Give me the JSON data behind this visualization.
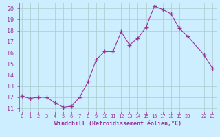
{
  "x": [
    0,
    1,
    2,
    3,
    4,
    5,
    6,
    7,
    8,
    9,
    10,
    11,
    12,
    13,
    14,
    15,
    16,
    17,
    18,
    19,
    20,
    22,
    23
  ],
  "y": [
    12.1,
    11.9,
    12.0,
    12.0,
    11.5,
    11.1,
    11.2,
    12.0,
    13.4,
    15.4,
    16.1,
    16.1,
    17.9,
    16.7,
    17.3,
    18.3,
    20.2,
    19.9,
    19.5,
    18.2,
    17.5,
    15.8,
    14.6
  ],
  "line_color": "#993399",
  "marker": "+",
  "marker_size": 4,
  "bg_color": "#cceeff",
  "grid_color": "#aacccc",
  "xlabel": "Windchill (Refroidissement éolien,°C)",
  "xlabel_color": "#993399",
  "tick_color": "#993399",
  "ylim": [
    10.7,
    20.5
  ],
  "yticks": [
    11,
    12,
    13,
    14,
    15,
    16,
    17,
    18,
    19,
    20
  ],
  "ytick_labels": [
    "11",
    "12",
    "13",
    "14",
    "15",
    "16",
    "17",
    "18",
    "19",
    "20"
  ],
  "xticks": [
    0,
    1,
    2,
    3,
    4,
    5,
    6,
    7,
    8,
    9,
    10,
    11,
    12,
    13,
    14,
    15,
    16,
    17,
    18,
    19,
    20,
    22,
    23
  ],
  "xtick_labels": [
    "0",
    "1",
    "2",
    "3",
    "4",
    "5",
    "6",
    "7",
    "8",
    "9",
    "10",
    "11",
    "12",
    "13",
    "14",
    "15",
    "16",
    "17",
    "18",
    "19",
    "20",
    "22",
    "23"
  ],
  "xlim": [
    -0.3,
    23.5
  ]
}
